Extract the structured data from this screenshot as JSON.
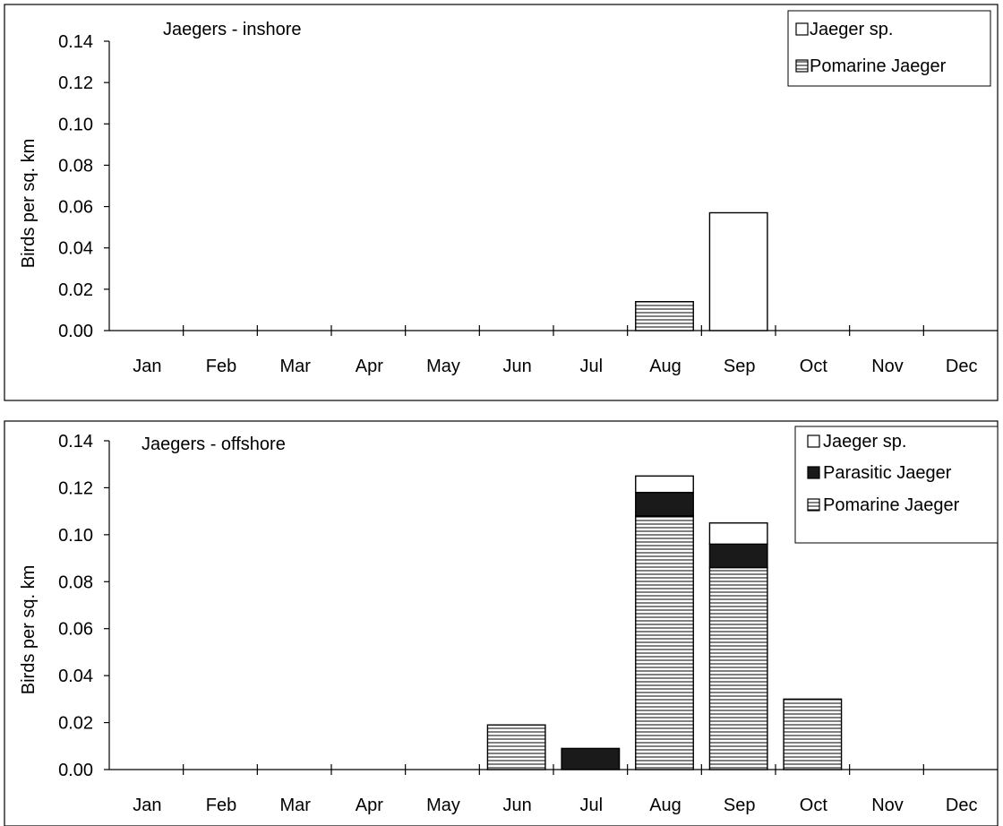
{
  "chart_data": [
    {
      "type": "bar",
      "stacked": true,
      "title": "Jaegers - inshore",
      "ylabel": "Birds per sq. km",
      "xlabel": "",
      "categories": [
        "Jan",
        "Feb",
        "Mar",
        "Apr",
        "May",
        "Jun",
        "Jul",
        "Aug",
        "Sep",
        "Oct",
        "Nov",
        "Dec"
      ],
      "ylim": [
        0,
        0.14
      ],
      "yticks": [
        "0.00",
        "0.02",
        "0.04",
        "0.06",
        "0.08",
        "0.10",
        "0.12",
        "0.14"
      ],
      "grid": false,
      "legend_position": "top-right",
      "legend": [
        "Jaeger sp.",
        "Pomarine Jaeger"
      ],
      "series": [
        {
          "name": "Pomarine Jaeger",
          "pattern": "hlines",
          "values": [
            0,
            0,
            0,
            0,
            0,
            0,
            0,
            0.014,
            0,
            0,
            0,
            0
          ]
        },
        {
          "name": "Jaeger sp.",
          "pattern": "white",
          "values": [
            0,
            0,
            0,
            0,
            0,
            0,
            0,
            0,
            0.057,
            0,
            0,
            0
          ]
        }
      ]
    },
    {
      "type": "bar",
      "stacked": true,
      "title": "Jaegers - offshore",
      "ylabel": "Birds per sq. km",
      "xlabel": "",
      "categories": [
        "Jan",
        "Feb",
        "Mar",
        "Apr",
        "May",
        "Jun",
        "Jul",
        "Aug",
        "Sep",
        "Oct",
        "Nov",
        "Dec"
      ],
      "ylim": [
        0,
        0.14
      ],
      "yticks": [
        "0.00",
        "0.02",
        "0.04",
        "0.06",
        "0.08",
        "0.10",
        "0.12",
        "0.14"
      ],
      "grid": false,
      "legend_position": "top-right",
      "legend": [
        "Jaeger sp.",
        "Parasitic Jaeger",
        "Pomarine Jaeger"
      ],
      "series": [
        {
          "name": "Pomarine Jaeger",
          "pattern": "hlines",
          "values": [
            0,
            0,
            0,
            0,
            0,
            0.019,
            0,
            0.108,
            0.086,
            0.03,
            0,
            0
          ]
        },
        {
          "name": "Parasitic Jaeger",
          "pattern": "black",
          "values": [
            0,
            0,
            0,
            0,
            0,
            0,
            0.009,
            0.01,
            0.01,
            0,
            0,
            0
          ]
        },
        {
          "name": "Jaeger sp.",
          "pattern": "white",
          "values": [
            0,
            0,
            0,
            0,
            0,
            0,
            0,
            0.007,
            0.009,
            0,
            0,
            0
          ]
        }
      ]
    }
  ]
}
